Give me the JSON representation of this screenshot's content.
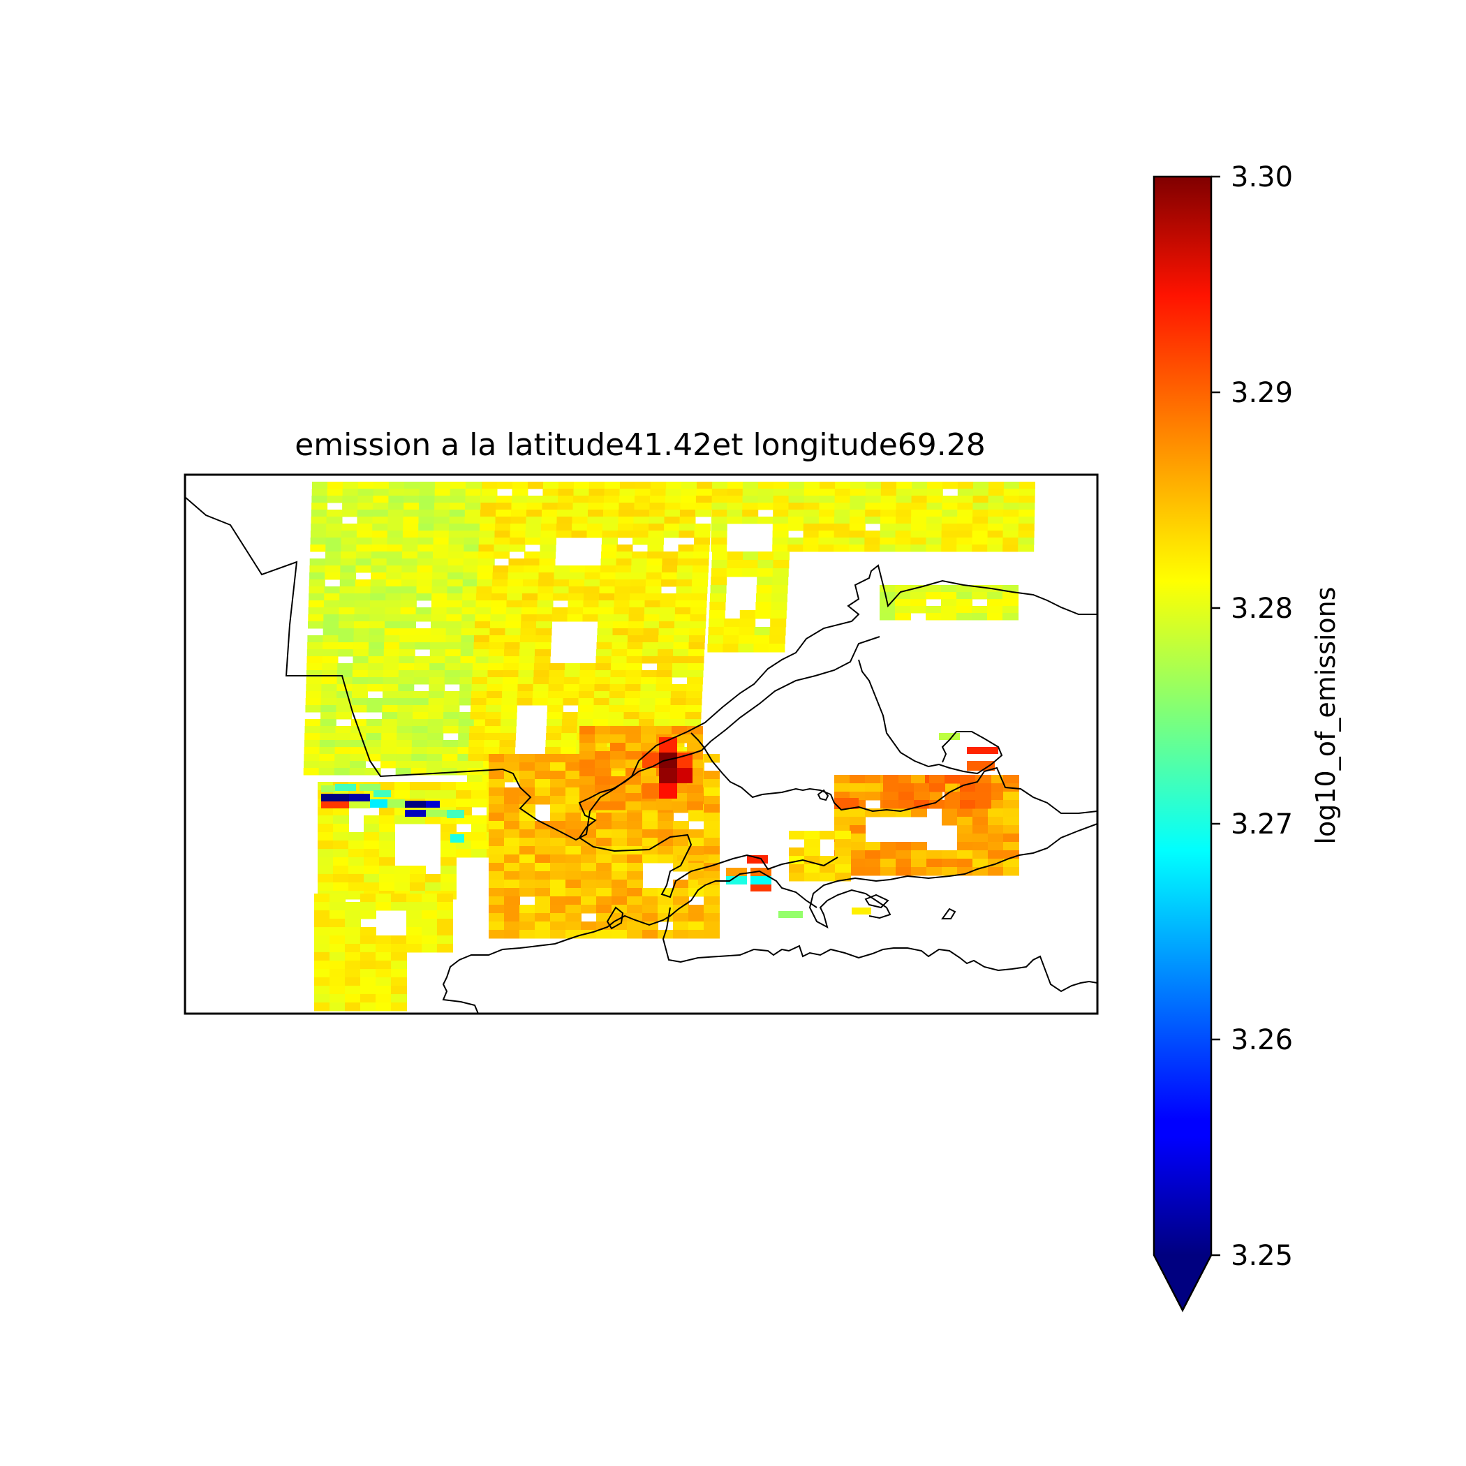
{
  "chart_data": {
    "type": "heatmap",
    "title": "emission a la latitude41.42et longitude69.28",
    "map_ticks": "none",
    "coastlines": true,
    "colormap": "jet",
    "colorbar": {
      "label": "log10_of_emissions",
      "vmin": 3.25,
      "vmax": 3.3,
      "extend": "min",
      "ticks": [
        "3.25",
        "3.26",
        "3.27",
        "3.28",
        "3.29",
        "3.30"
      ],
      "position": "right"
    },
    "field_summary": {
      "dominant_value_range": [
        3.277,
        3.284
      ],
      "hotspots": [
        {
          "region": "center",
          "value": 3.3
        },
        {
          "region": "east",
          "value": 3.289
        },
        {
          "region": "northeast",
          "value": 3.292
        }
      ],
      "lows": [
        {
          "region": "west",
          "value": 3.25
        }
      ]
    }
  }
}
